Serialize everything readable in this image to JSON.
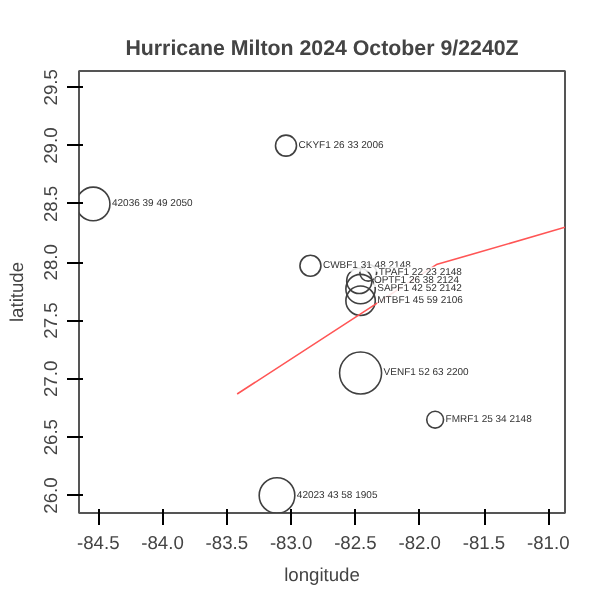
{
  "chart_data": {
    "type": "bubble",
    "title": "Hurricane Milton 2024 October 9/2240Z",
    "xlabel": "longitude",
    "ylabel": "latitude",
    "grid": false,
    "xlim": [
      -84.65,
      -80.87
    ],
    "ylim": [
      25.85,
      29.64
    ],
    "xticks": [
      -84.5,
      {
        "value": -84,
        "label": "-84.0"
      },
      -83.5,
      {
        "value": -83,
        "label": "-83.0"
      },
      -82.5,
      {
        "value": -82,
        "label": "-82.0"
      },
      -81.5,
      {
        "value": -81,
        "label": "-81.0"
      }
    ],
    "yticks": [
      {
        "value": 26,
        "label": "26.0"
      },
      26.5,
      {
        "value": 27,
        "label": "27.0"
      },
      27.5,
      {
        "value": 28,
        "label": "28.0"
      },
      28.5,
      {
        "value": 29,
        "label": "29.0"
      },
      29.5
    ],
    "series": [
      {
        "color": "#404040",
        "marker": "circle",
        "x": [
          -84.54,
          -83.04,
          -82.85,
          -82.4,
          -82.47,
          -82.46,
          -82.46,
          -82.46,
          -81.88,
          -83.11
        ],
        "values": [
          28.5,
          29.0,
          27.97,
          27.91,
          27.84,
          27.77,
          27.67,
          27.05,
          26.65,
          26.0
        ],
        "sizes": [
          0.64,
          0.25,
          0.25,
          0.16,
          0.36,
          0.49,
          0.49,
          1,
          0.16,
          0.72
        ]
      },
      {
        "type": "line",
        "color": "#ff5555",
        "line_style": "solid",
        "marker": "none",
        "x": [
          -83.42,
          -81.87,
          -80.87
        ],
        "values": [
          26.87,
          27.98,
          28.3
        ]
      }
    ],
    "annotations": [
      {
        "text": "42036 39 49 2050",
        "x": -84.54,
        "y": 28.5
      },
      {
        "text": "CKYF1 26 33 2006",
        "x": -83.04,
        "y": 29.0
      },
      {
        "text": "CWBF1 31 48 2148",
        "x": -82.85,
        "y": 27.97
      },
      {
        "text": "TPAF1 22 23 2148",
        "x": -82.4,
        "y": 27.91
      },
      {
        "text": "OPTF1 26 38 2124",
        "x": -82.47,
        "y": 27.84
      },
      {
        "text": "SAPF1 42 52 2142",
        "x": -82.46,
        "y": 27.77
      },
      {
        "text": "MTBF1 45 59 2106",
        "x": -82.46,
        "y": 27.67
      },
      {
        "text": "VENF1 52 63 2200",
        "x": -82.46,
        "y": 27.05
      },
      {
        "text": "FMRF1 25 34 2148",
        "x": -81.88,
        "y": 26.65
      },
      {
        "text": "42023 43 58 1905",
        "x": -83.11,
        "y": 26.0
      }
    ]
  }
}
